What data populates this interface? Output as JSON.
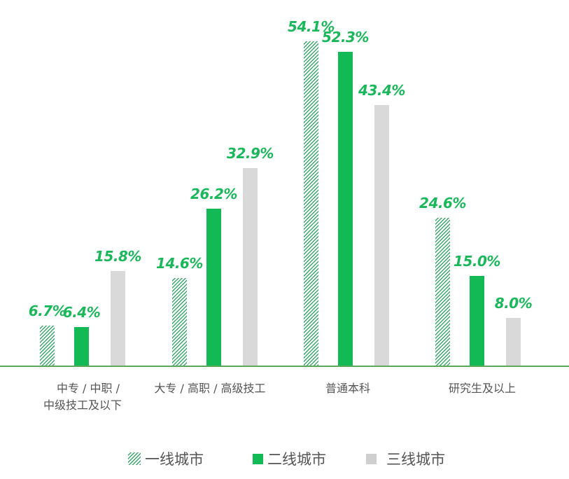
{
  "chart_data": {
    "type": "bar",
    "title": "",
    "xlabel": "",
    "ylabel": "",
    "categories": [
      "中专 / 中职 / 中级技工及以下",
      "大专 / 高职 / 高级技工",
      "普通本科",
      "研究生及以上"
    ],
    "category_lines": [
      [
        "中专 / 中职 /",
        "中级技工及以下"
      ],
      [
        "大专 / 高职 / 高级技工"
      ],
      [
        "普通本科"
      ],
      [
        "研究生及以上"
      ]
    ],
    "series": [
      {
        "name": "一线城市",
        "style": "hatched",
        "color": "#3aa96b",
        "values": [
          6.7,
          14.6,
          54.1,
          24.6
        ],
        "labels": [
          "6.7%",
          "14.6%",
          "54.1%",
          "24.6%"
        ]
      },
      {
        "name": "二线城市",
        "style": "solid",
        "color": "#12b955",
        "values": [
          6.4,
          26.2,
          52.3,
          15.0
        ],
        "labels": [
          "6.4%",
          "26.2%",
          "52.3%",
          "15.0%"
        ]
      },
      {
        "name": "三线城市",
        "style": "solid",
        "color": "#d9d9d9",
        "values": [
          15.8,
          32.9,
          43.4,
          8.0
        ],
        "labels": [
          "15.8%",
          "32.9%",
          "43.4%",
          "8.0%"
        ]
      }
    ],
    "value_label_color": "#1ab85a",
    "axis_color": "#5aa95a",
    "grid": false,
    "legend_position": "bottom",
    "ylim": [
      0,
      55
    ]
  },
  "legend": {
    "items": [
      {
        "label": "一线城市",
        "icon": "hatched-swatch-icon"
      },
      {
        "label": "二线城市",
        "icon": "green-swatch-icon"
      },
      {
        "label": "三线城市",
        "icon": "gray-swatch-icon"
      }
    ]
  }
}
